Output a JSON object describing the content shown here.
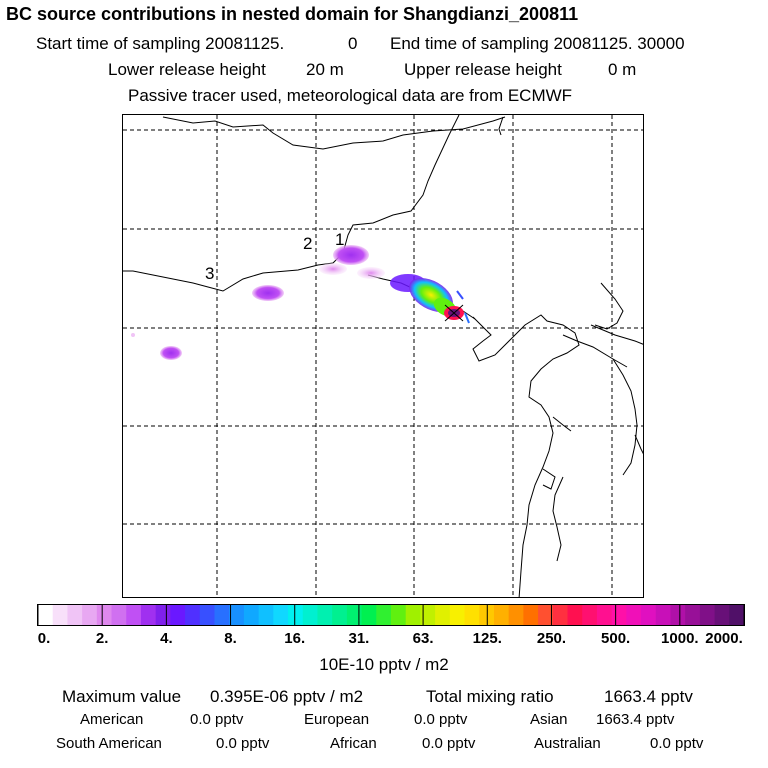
{
  "header": {
    "title": "BC  source contributions in nested domain for Shangdianzi_200811",
    "start_label": "Start time of sampling 20081125.",
    "start_value": "0",
    "end_label": "End time of sampling 20081125. 30000",
    "lower_label": "Lower release height",
    "lower_value": "20 m",
    "upper_label": "Upper release height",
    "upper_value": "0 m",
    "note": "Passive tracer used, meteorological data are from ECMWF"
  },
  "map": {
    "markers": [
      "1",
      "2",
      "3"
    ]
  },
  "colorbar": {
    "tick_labels": [
      "0.",
      "2.",
      "4.",
      "8.",
      "16.",
      "31.",
      "63.",
      "125.",
      "250.",
      "500.",
      "1000.",
      "2000."
    ],
    "colors": [
      "#ffffff",
      "#f8e0fa",
      "#f0c4f6",
      "#e8a8f2",
      "#df88ee",
      "#d070f0",
      "#c050f4",
      "#a030f0",
      "#8020ec",
      "#6a18ff",
      "#5030ff",
      "#3850ff",
      "#2870ff",
      "#1890ff",
      "#10a8ff",
      "#10c0ff",
      "#10d8ff",
      "#00f0f0",
      "#00f0d0",
      "#00f0b0",
      "#00f090",
      "#00f070",
      "#00f050",
      "#30f030",
      "#60f010",
      "#a0f000",
      "#c0f000",
      "#e0f000",
      "#f8f000",
      "#ffe000",
      "#ffc800",
      "#ffb000",
      "#ff9000",
      "#ff7000",
      "#ff5030",
      "#ff3040",
      "#ff1050",
      "#ff1070",
      "#ff1090",
      "#ff10a8",
      "#f010b8",
      "#e010c0",
      "#c810b8",
      "#b010a8",
      "#981098",
      "#801088",
      "#681078",
      "#501068"
    ],
    "units": "10E-10 pptv / m2"
  },
  "stats": {
    "max_label": "Maximum value",
    "max_value": "0.395E-06 pptv / m2",
    "total_label": "Total mixing ratio",
    "total_value": "1663.4 pptv",
    "regions": [
      {
        "name": "American",
        "value": "0.0 pptv"
      },
      {
        "name": "European",
        "value": "0.0 pptv"
      },
      {
        "name": "Asian",
        "value": "1663.4 pptv"
      },
      {
        "name": "South American",
        "value": "0.0 pptv"
      },
      {
        "name": "African",
        "value": "0.0 pptv"
      },
      {
        "name": "Australian",
        "value": "0.0 pptv"
      }
    ]
  }
}
